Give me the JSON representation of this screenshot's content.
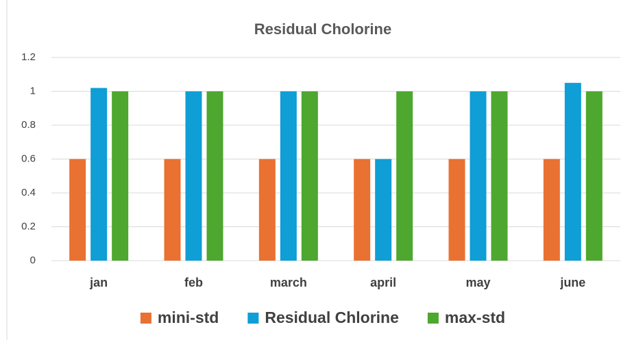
{
  "chart_data": {
    "type": "bar",
    "title": "Residual Cholorine",
    "categories": [
      "jan",
      "feb",
      "march",
      "april",
      "may",
      "june"
    ],
    "series": [
      {
        "name": "mini-std",
        "color": "#e97132",
        "values": [
          0.6,
          0.6,
          0.6,
          0.6,
          0.6,
          0.6
        ]
      },
      {
        "name": "Residual Chlorine",
        "color": "#0f9ed5",
        "values": [
          1.02,
          1,
          1,
          0.6,
          1,
          1.05
        ]
      },
      {
        "name": "max-std",
        "color": "#4ea72e",
        "values": [
          1,
          1,
          1,
          1,
          1,
          1
        ]
      }
    ],
    "ylim": [
      0,
      1.2
    ],
    "yticks": [
      0,
      0.2,
      0.4,
      0.6,
      0.8,
      1,
      1.2
    ],
    "grid": true,
    "legend": "bottom"
  }
}
